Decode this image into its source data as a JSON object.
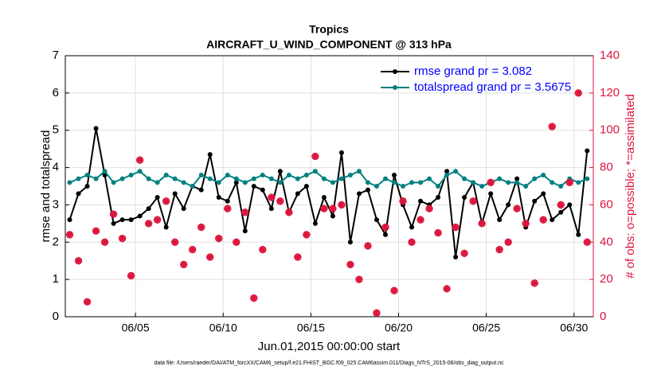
{
  "chart_data": {
    "type": "line",
    "title": "Tropics",
    "subtitle": "AIRCRAFT_U_WIND_COMPONENT @ 313 hPa",
    "xlabel": "Jun.01,2015 00:00:00 start",
    "ylabel": "rmse and totalspread",
    "y2label": "# of obs: o=possible; *=assimilated",
    "footnote": "data file: /Users/raeder/DAI/ATM_forcXX/CAM6_setup/f.e21.FHIST_BGC.f09_025.CAM6assim.011/Diags_NTrS_2015-06/obs_diag_output.nc",
    "xlim": [
      1,
      31.1
    ],
    "xticks": [
      {
        "value": 5,
        "label": "06/05"
      },
      {
        "value": 10,
        "label": "06/10"
      },
      {
        "value": 15,
        "label": "06/15"
      },
      {
        "value": 20,
        "label": "06/20"
      },
      {
        "value": 25,
        "label": "06/25"
      },
      {
        "value": 30,
        "label": "06/30"
      }
    ],
    "ylim": [
      0,
      7
    ],
    "yticks": [
      0,
      1,
      2,
      3,
      4,
      5,
      6,
      7
    ],
    "y2lim": [
      0,
      140
    ],
    "y2ticks": [
      0,
      20,
      40,
      60,
      80,
      100,
      120,
      140
    ],
    "grid": true,
    "legend": "northeast",
    "x": [
      1.25,
      1.75,
      2.25,
      2.75,
      3.25,
      3.75,
      4.25,
      4.75,
      5.25,
      5.75,
      6.25,
      6.75,
      7.25,
      7.75,
      8.25,
      8.75,
      9.25,
      9.75,
      10.25,
      10.75,
      11.25,
      11.75,
      12.25,
      12.75,
      13.25,
      13.75,
      14.25,
      14.75,
      15.25,
      15.75,
      16.25,
      16.75,
      17.25,
      17.75,
      18.25,
      18.75,
      19.25,
      19.75,
      20.25,
      20.75,
      21.25,
      21.75,
      22.25,
      22.75,
      23.25,
      23.75,
      24.25,
      24.75,
      25.25,
      25.75,
      26.25,
      26.75,
      27.25,
      27.75,
      28.25,
      28.75,
      29.25,
      29.75,
      30.25,
      30.75
    ],
    "series": [
      {
        "name": "rmse grand pr = 3.082",
        "color": "#000000",
        "marker": "dot",
        "values": [
          2.6,
          3.3,
          3.5,
          5.05,
          3.8,
          2.5,
          2.6,
          2.6,
          2.7,
          2.9,
          3.2,
          2.4,
          3.3,
          2.9,
          3.5,
          3.4,
          4.35,
          3.2,
          3.1,
          3.6,
          2.3,
          3.5,
          3.4,
          2.9,
          3.9,
          2.8,
          3.3,
          3.5,
          2.5,
          3.2,
          2.7,
          4.4,
          2.0,
          3.3,
          3.4,
          2.6,
          2.2,
          3.8,
          3.0,
          2.4,
          3.1,
          3.0,
          3.2,
          3.9,
          1.6,
          3.2,
          3.6,
          2.5,
          3.3,
          2.6,
          3.0,
          3.7,
          2.4,
          3.1,
          3.3,
          2.6,
          2.8,
          3.0,
          2.2,
          4.45
        ]
      },
      {
        "name": "totalspread grand pr = 3.5675",
        "color": "#008080",
        "marker": "dot",
        "values": [
          3.6,
          3.7,
          3.8,
          3.7,
          3.9,
          3.6,
          3.7,
          3.8,
          3.9,
          3.7,
          3.6,
          3.8,
          3.7,
          3.6,
          3.5,
          3.8,
          3.7,
          3.6,
          3.8,
          3.7,
          3.6,
          3.7,
          3.8,
          3.7,
          3.6,
          3.8,
          3.7,
          3.8,
          3.9,
          3.7,
          3.6,
          3.7,
          3.8,
          3.9,
          3.6,
          3.5,
          3.7,
          3.6,
          3.5,
          3.6,
          3.6,
          3.7,
          3.5,
          3.8,
          3.9,
          3.7,
          3.6,
          3.5,
          3.6,
          3.7,
          3.6,
          3.6,
          3.5,
          3.7,
          3.8,
          3.6,
          3.5,
          3.7,
          3.6,
          3.7
        ]
      },
      {
        "name": "possible",
        "color": "#dc143c",
        "marker": "circle",
        "axis": "y2",
        "values": [
          44,
          30,
          8,
          46,
          40,
          55,
          42,
          22,
          84,
          50,
          52,
          62,
          40,
          28,
          36,
          48,
          32,
          42,
          58,
          40,
          56,
          10,
          36,
          64,
          62,
          56,
          32,
          44,
          86,
          58,
          58,
          60,
          28,
          20,
          38,
          2,
          48,
          14,
          62,
          40,
          52,
          58,
          45,
          15,
          48,
          34,
          62,
          50,
          72,
          36,
          40,
          58,
          50,
          18,
          52,
          102,
          60,
          72,
          120,
          40
        ]
      },
      {
        "name": "assimilated",
        "color": "#dc143c",
        "marker": "star",
        "axis": "y2",
        "values": [
          44,
          30,
          8,
          46,
          40,
          55,
          42,
          22,
          84,
          50,
          52,
          62,
          40,
          28,
          36,
          48,
          32,
          42,
          58,
          40,
          56,
          10,
          36,
          64,
          62,
          56,
          32,
          44,
          86,
          58,
          58,
          60,
          28,
          20,
          38,
          2,
          48,
          14,
          62,
          40,
          52,
          58,
          45,
          15,
          48,
          34,
          62,
          50,
          72,
          36,
          40,
          58,
          50,
          18,
          52,
          102,
          60,
          72,
          120,
          40
        ]
      }
    ]
  }
}
